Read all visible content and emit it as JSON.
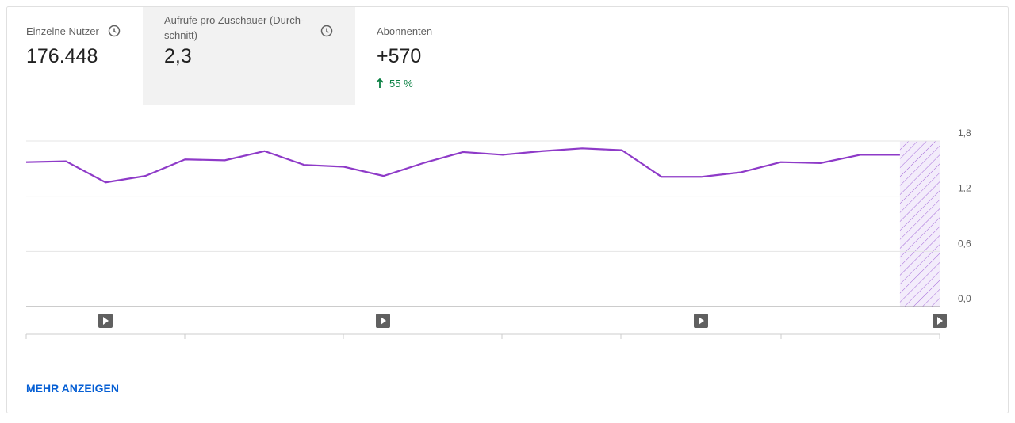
{
  "cards": [
    {
      "label": "Einzelne Nutzer",
      "value": "176.448"
    },
    {
      "label_lines": [
        "Aufrufe pro Zuschauer (Durch-",
        "schnitt)"
      ],
      "value": "2,3"
    },
    {
      "label": "Abonnenten",
      "value": "+570",
      "change": "55 %"
    }
  ],
  "chart_data": {
    "type": "line",
    "categories": [
      null,
      null,
      null,
      null,
      null,
      null,
      null,
      null,
      null,
      null,
      null,
      null,
      null,
      null,
      null,
      null,
      null,
      null,
      null,
      null,
      null,
      null,
      null
    ],
    "series": [
      {
        "color": "#8e3ac8",
        "values": [
          1.57,
          1.58,
          1.35,
          1.42,
          1.6,
          1.59,
          1.69,
          1.54,
          1.52,
          1.42,
          1.56,
          1.68,
          1.65,
          1.69,
          1.72,
          1.7,
          1.41,
          1.41,
          1.46,
          1.57,
          1.56,
          1.65,
          1.65
        ]
      }
    ],
    "ylim": [
      0,
      1.8
    ],
    "yticks": [
      {
        "value": 0,
        "label": "0,0"
      },
      {
        "value": 0.6,
        "label": "0,6"
      },
      {
        "value": 1.2,
        "label": "1,2"
      },
      {
        "value": 1.8,
        "label": "1,8"
      }
    ],
    "grid": true
  },
  "link": "MEHR ANZEIGEN"
}
